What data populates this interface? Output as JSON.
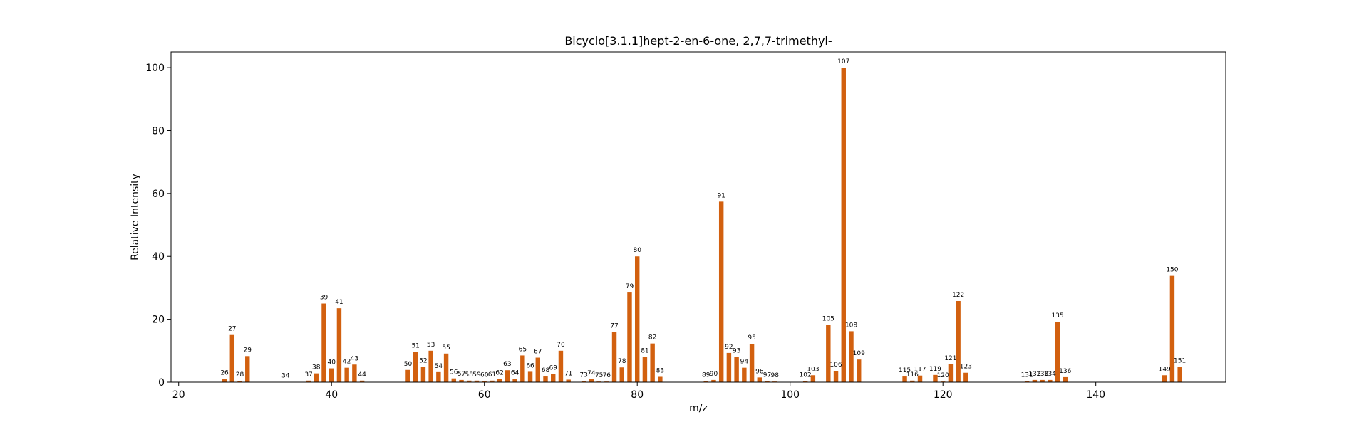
{
  "chart_data": {
    "type": "bar",
    "title": "Bicyclo[3.1.1]hept-2-en-6-one, 2,7,7-trimethyl-",
    "xlabel": "m/z",
    "ylabel": "Relative Intensity",
    "xlim": [
      19,
      157
    ],
    "ylim": [
      0,
      105
    ],
    "xticks": [
      20,
      40,
      60,
      80,
      100,
      120,
      140
    ],
    "yticks": [
      0,
      20,
      40,
      60,
      80,
      100
    ],
    "grid": false,
    "bar_color": "#d2600f",
    "x": [
      26,
      27,
      28,
      29,
      34,
      37,
      38,
      39,
      40,
      41,
      42,
      43,
      44,
      50,
      51,
      52,
      53,
      54,
      55,
      56,
      57,
      58,
      59,
      60,
      61,
      62,
      63,
      64,
      65,
      66,
      67,
      68,
      69,
      70,
      71,
      73,
      74,
      75,
      76,
      77,
      78,
      79,
      80,
      81,
      82,
      83,
      89,
      90,
      91,
      92,
      93,
      94,
      95,
      96,
      97,
      98,
      102,
      103,
      105,
      106,
      107,
      108,
      109,
      115,
      116,
      117,
      119,
      120,
      121,
      122,
      123,
      131,
      132,
      133,
      134,
      135,
      136,
      149,
      150,
      151
    ],
    "values": [
      1.0,
      15.0,
      0.4,
      8.3,
      0.1,
      0.5,
      2.8,
      25.0,
      4.4,
      23.5,
      4.6,
      5.6,
      0.5,
      3.9,
      9.6,
      4.9,
      10.0,
      3.2,
      9.1,
      1.2,
      0.7,
      0.5,
      0.5,
      0.3,
      0.5,
      1.0,
      3.8,
      1.0,
      8.5,
      3.3,
      7.8,
      1.8,
      2.6,
      10.0,
      0.8,
      0.3,
      0.9,
      0.2,
      0.2,
      16.0,
      4.7,
      28.5,
      40.0,
      8.0,
      12.3,
      1.7,
      0.3,
      0.7,
      57.4,
      9.3,
      8.0,
      4.6,
      12.2,
      1.5,
      0.3,
      0.2,
      0.3,
      2.2,
      18.2,
      3.6,
      100.0,
      16.2,
      7.2,
      1.8,
      0.5,
      2.1,
      2.3,
      0.2,
      5.7,
      25.8,
      3.0,
      0.3,
      0.7,
      0.7,
      0.7,
      19.2,
      1.6,
      2.2,
      33.8,
      4.9
    ],
    "labels": [
      "26",
      "27",
      "28",
      "29",
      "34",
      "37",
      "38",
      "39",
      "40",
      "41",
      "42",
      "43",
      "44",
      "50",
      "51",
      "52",
      "53",
      "54",
      "55",
      "56",
      "57",
      "58",
      "59",
      "60",
      "61",
      "62",
      "63",
      "64",
      "65",
      "66",
      "67",
      "68",
      "69",
      "70",
      "71",
      "73",
      "74",
      "75",
      "76",
      "77",
      "78",
      "79",
      "80",
      "81",
      "82",
      "83",
      "89",
      "90",
      "91",
      "92",
      "93",
      "94",
      "95",
      "96",
      "97",
      "98",
      "102",
      "103",
      "105",
      "106",
      "107",
      "108",
      "109",
      "115",
      "116",
      "117",
      "119",
      "120",
      "121",
      "122",
      "123",
      "131",
      "132",
      "133",
      "134",
      "135",
      "136",
      "149",
      "150",
      "151"
    ]
  }
}
